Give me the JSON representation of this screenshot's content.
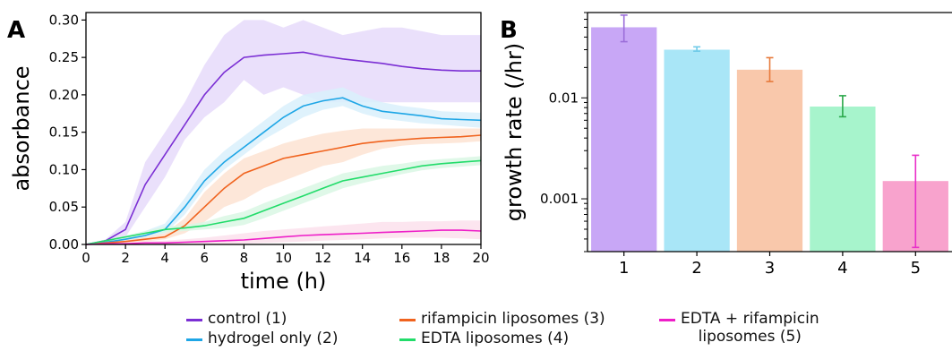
{
  "chart_data": [
    {
      "panel_label": "A",
      "type": "line",
      "xlabel": "time (h)",
      "ylabel": "absorbance",
      "xlim": [
        0,
        20
      ],
      "ylim": [
        0,
        0.31
      ],
      "xticks": [
        0,
        2,
        4,
        6,
        8,
        10,
        12,
        14,
        16,
        18,
        20
      ],
      "yticks": [
        0.0,
        0.05,
        0.1,
        0.15,
        0.2,
        0.25,
        0.3
      ],
      "ytick_labels": [
        "0.00",
        "0.05",
        "0.10",
        "0.15",
        "0.20",
        "0.25",
        "0.30"
      ],
      "shaded_error_bands": true,
      "x": [
        0,
        1,
        2,
        3,
        4,
        5,
        6,
        7,
        8,
        9,
        10,
        11,
        12,
        13,
        14,
        15,
        16,
        17,
        18,
        19,
        20
      ],
      "series": [
        {
          "name": "control (1)",
          "color": "#7b2fd4",
          "band": "#e6dbfa",
          "values": [
            0.0,
            0.005,
            0.02,
            0.08,
            0.12,
            0.16,
            0.2,
            0.23,
            0.25,
            0.253,
            0.255,
            0.257,
            0.252,
            0.248,
            0.245,
            0.242,
            0.238,
            0.235,
            0.233,
            0.232,
            0.232
          ],
          "lower": [
            0.0,
            0.003,
            0.01,
            0.05,
            0.09,
            0.14,
            0.17,
            0.19,
            0.22,
            0.2,
            0.21,
            0.2,
            0.19,
            0.19,
            0.19,
            0.19,
            0.19,
            0.19,
            0.19,
            0.19,
            0.19
          ],
          "upper": [
            0.0,
            0.007,
            0.03,
            0.11,
            0.15,
            0.19,
            0.24,
            0.28,
            0.3,
            0.3,
            0.29,
            0.3,
            0.29,
            0.28,
            0.285,
            0.29,
            0.29,
            0.285,
            0.28,
            0.28,
            0.28
          ]
        },
        {
          "name": "hydrogel only (2)",
          "color": "#1ea6e6",
          "band": "#d9f0fb",
          "values": [
            0.0,
            0.003,
            0.007,
            0.012,
            0.02,
            0.05,
            0.085,
            0.11,
            0.13,
            0.15,
            0.17,
            0.185,
            0.192,
            0.196,
            0.185,
            0.178,
            0.175,
            0.172,
            0.168,
            0.167,
            0.166
          ],
          "lower": [
            0.0,
            0.002,
            0.004,
            0.008,
            0.015,
            0.04,
            0.075,
            0.1,
            0.12,
            0.14,
            0.155,
            0.17,
            0.18,
            0.185,
            0.175,
            0.168,
            0.165,
            0.162,
            0.16,
            0.158,
            0.156
          ],
          "upper": [
            0.0,
            0.004,
            0.01,
            0.018,
            0.028,
            0.062,
            0.1,
            0.125,
            0.145,
            0.165,
            0.185,
            0.2,
            0.205,
            0.21,
            0.198,
            0.19,
            0.185,
            0.182,
            0.178,
            0.177,
            0.176
          ]
        },
        {
          "name": "rifampicin liposomes (3)",
          "color": "#f0631e",
          "band": "#fde3d2",
          "values": [
            0.0,
            0.002,
            0.004,
            0.007,
            0.01,
            0.025,
            0.05,
            0.075,
            0.095,
            0.105,
            0.115,
            0.12,
            0.125,
            0.13,
            0.135,
            0.138,
            0.14,
            0.142,
            0.143,
            0.144,
            0.146
          ],
          "lower": [
            0.0,
            0.001,
            0.002,
            0.004,
            0.007,
            0.015,
            0.03,
            0.05,
            0.06,
            0.075,
            0.085,
            0.095,
            0.105,
            0.11,
            0.12,
            0.128,
            0.132,
            0.134,
            0.135,
            0.136,
            0.138
          ],
          "upper": [
            0.0,
            0.003,
            0.006,
            0.01,
            0.015,
            0.035,
            0.07,
            0.095,
            0.115,
            0.125,
            0.135,
            0.142,
            0.148,
            0.152,
            0.155,
            0.155,
            0.155,
            0.155,
            0.155,
            0.155,
            0.155
          ]
        },
        {
          "name": "EDTA liposomes (4)",
          "color": "#22dc6a",
          "band": "#d9f7e4",
          "values": [
            0.0,
            0.005,
            0.01,
            0.015,
            0.02,
            0.022,
            0.025,
            0.03,
            0.035,
            0.045,
            0.055,
            0.065,
            0.075,
            0.085,
            0.09,
            0.095,
            0.1,
            0.105,
            0.108,
            0.11,
            0.112
          ],
          "lower": [
            0.0,
            0.004,
            0.008,
            0.012,
            0.016,
            0.018,
            0.02,
            0.022,
            0.026,
            0.035,
            0.045,
            0.055,
            0.065,
            0.075,
            0.082,
            0.088,
            0.094,
            0.099,
            0.102,
            0.104,
            0.106
          ],
          "upper": [
            0.0,
            0.006,
            0.012,
            0.018,
            0.024,
            0.026,
            0.03,
            0.038,
            0.044,
            0.055,
            0.065,
            0.075,
            0.085,
            0.095,
            0.1,
            0.105,
            0.108,
            0.112,
            0.114,
            0.116,
            0.118
          ]
        },
        {
          "name": "EDTA + rifampicin liposomes (5)",
          "color": "#ee1ec8",
          "band": "#fbe0ec",
          "values": [
            0.0,
            0.001,
            0.001,
            0.002,
            0.002,
            0.003,
            0.004,
            0.005,
            0.006,
            0.008,
            0.01,
            0.012,
            0.013,
            0.014,
            0.015,
            0.016,
            0.017,
            0.018,
            0.019,
            0.019,
            0.018
          ],
          "lower": [
            0.0,
            0.0,
            0.0,
            0.0,
            0.0,
            0.0,
            0.0,
            0.0,
            0.001,
            0.002,
            0.003,
            0.004,
            0.005,
            0.006,
            0.007,
            0.008,
            0.009,
            0.009,
            0.009,
            0.008,
            0.007
          ],
          "upper": [
            0.0,
            0.002,
            0.003,
            0.004,
            0.005,
            0.007,
            0.009,
            0.012,
            0.015,
            0.018,
            0.02,
            0.022,
            0.024,
            0.026,
            0.028,
            0.03,
            0.03,
            0.031,
            0.031,
            0.032,
            0.032
          ]
        }
      ]
    },
    {
      "panel_label": "B",
      "type": "bar",
      "ylabel": "growth rate (/hr)",
      "yscale": "log",
      "ylim": [
        0.0003,
        0.07
      ],
      "yticks": [
        0.001,
        0.01
      ],
      "ytick_labels": [
        "0.001",
        "0.01"
      ],
      "categories": [
        "1",
        "2",
        "3",
        "4",
        "5"
      ],
      "values": [
        0.05,
        0.03,
        0.019,
        0.0082,
        0.0015
      ],
      "error_low": [
        0.036,
        0.029,
        0.0145,
        0.0065,
        0.00033
      ],
      "error_high": [
        0.066,
        0.032,
        0.025,
        0.0105,
        0.0027
      ],
      "bar_colors": [
        "#c8a7f6",
        "#a9e6f7",
        "#f9c8ab",
        "#a7f4cc",
        "#f8a3cd"
      ],
      "error_colors": [
        "#9b6dd9",
        "#6fcbe8",
        "#e77a3b",
        "#2aa84a",
        "#e92ec9"
      ]
    }
  ],
  "legend": [
    {
      "label": "control (1)",
      "color": "#7b2fd4"
    },
    {
      "label": "hydrogel only (2)",
      "color": "#1ea6e6"
    },
    {
      "label": "rifampicin liposomes (3)",
      "color": "#f0631e"
    },
    {
      "label": "EDTA liposomes (4)",
      "color": "#22dc6a"
    },
    {
      "label": "EDTA + rifampicin\nliposomes (5)",
      "color": "#ee1ec8"
    }
  ]
}
